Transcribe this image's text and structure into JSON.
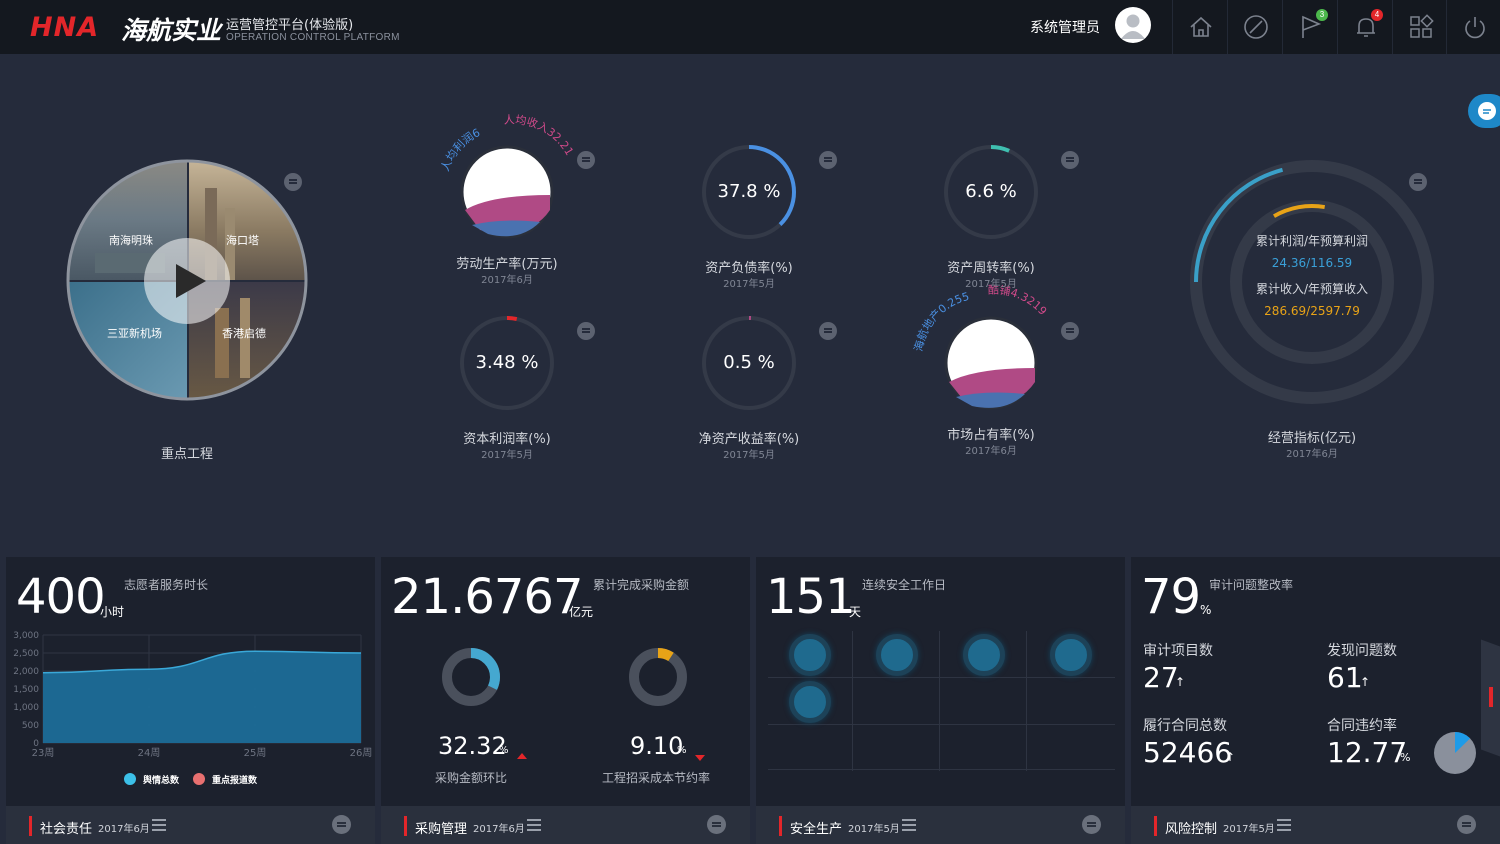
{
  "header": {
    "logo_text": "HNA",
    "brand_cn": "海航实业",
    "title": "运营管控平台(体验版)",
    "subtitle": "OPERATION CONTROL PLATFORM",
    "user_name": "系统管理员",
    "icons": [
      "home-icon",
      "compass-icon",
      "flag-icon",
      "bell-icon",
      "apps-icon",
      "power-icon"
    ],
    "flag_badge": "3",
    "bell_badge": "4"
  },
  "projects": {
    "label": "重点工程",
    "quadrants": [
      "南海明珠",
      "海口塔",
      "三亚新机场",
      "香港启德"
    ]
  },
  "kpis": {
    "labor": {
      "label": "劳动生产率(万元)",
      "date": "2017年6月",
      "arc_left": "人均利润6",
      "arc_right": "人均收入32.21"
    },
    "debt": {
      "label": "资产负债率(%)",
      "date": "2017年5月",
      "value": "37.8 %",
      "ratio": 0.378
    },
    "turnover": {
      "label": "资产周转率(%)",
      "date": "2017年5月",
      "value": "6.6 %",
      "ratio": 0.066
    },
    "capital": {
      "label": "资本利润率(%)",
      "date": "2017年5月",
      "value": "3.48 %",
      "ratio": 0.0348
    },
    "roe": {
      "label": "净资产收益率(%)",
      "date": "2017年5月",
      "value": "0.5 %",
      "ratio": 0.005
    },
    "market": {
      "label": "市场占有率(%)",
      "date": "2017年6月",
      "arc_left": "海航地产0.255",
      "arc_right": "酷铺4.3219"
    },
    "operating": {
      "label": "经营指标(亿元)",
      "date": "2017年6月",
      "profit_label": "累计利润/年预算利润",
      "profit_value": "24.36/116.59",
      "profit_ratio": 0.209,
      "income_label": "累计收入/年预算收入",
      "income_value": "286.69/2597.79",
      "income_ratio": 0.11
    }
  },
  "colors": {
    "accent_blue": "#4a90e2",
    "teal": "#3fbfb0",
    "red": "#e3262a",
    "orange": "#e8a317",
    "pink": "#b04a85"
  },
  "panels": {
    "social": {
      "number": "400",
      "unit": "小时",
      "desc": "志愿者服务时长",
      "footer_title": "社会责任",
      "footer_date": "2017年6月",
      "chart_data": {
        "type": "area",
        "categories": [
          "23周",
          "24周",
          "25周",
          "26周"
        ],
        "y_ticks": [
          "3,000",
          "2,500",
          "2,000",
          "1,500",
          "1,000",
          "500",
          "0"
        ],
        "ylim": [
          0,
          3000
        ],
        "series": [
          {
            "name": "舆情总数",
            "values": [
              1950,
              2050,
              2550,
              2500
            ]
          }
        ],
        "legend": [
          "舆情总数",
          "重点报道数"
        ]
      }
    },
    "purchase": {
      "number": "21.6767",
      "unit": "亿元",
      "desc": "累计完成采购金额",
      "left_value": "32.32",
      "left_unit": "%",
      "left_label": "采购金额环比",
      "left_ratio": 0.3232,
      "right_value": "9.10",
      "right_unit": "%",
      "right_label": "工程招采成本节约率",
      "right_ratio": 0.091,
      "footer_title": "采购管理",
      "footer_date": "2017年6月"
    },
    "safety": {
      "number": "151",
      "unit": "天",
      "desc": "连续安全工作日",
      "dot_count": 5,
      "footer_title": "安全生产",
      "footer_date": "2017年5月"
    },
    "risk": {
      "number": "79",
      "unit": "%",
      "desc": "审计问题整改率",
      "items": [
        {
          "label": "审计项目数",
          "value": "27",
          "arrow": "↑"
        },
        {
          "label": "发现问题数",
          "value": "61",
          "arrow": "↑"
        },
        {
          "label": "履行合同总数",
          "value": "52466",
          "arrow": "↑"
        },
        {
          "label": "合同违约率",
          "value": "12.77",
          "unit": "%"
        }
      ],
      "breach_ratio": 0.1277,
      "footer_title": "风险控制",
      "footer_date": "2017年5月"
    }
  }
}
